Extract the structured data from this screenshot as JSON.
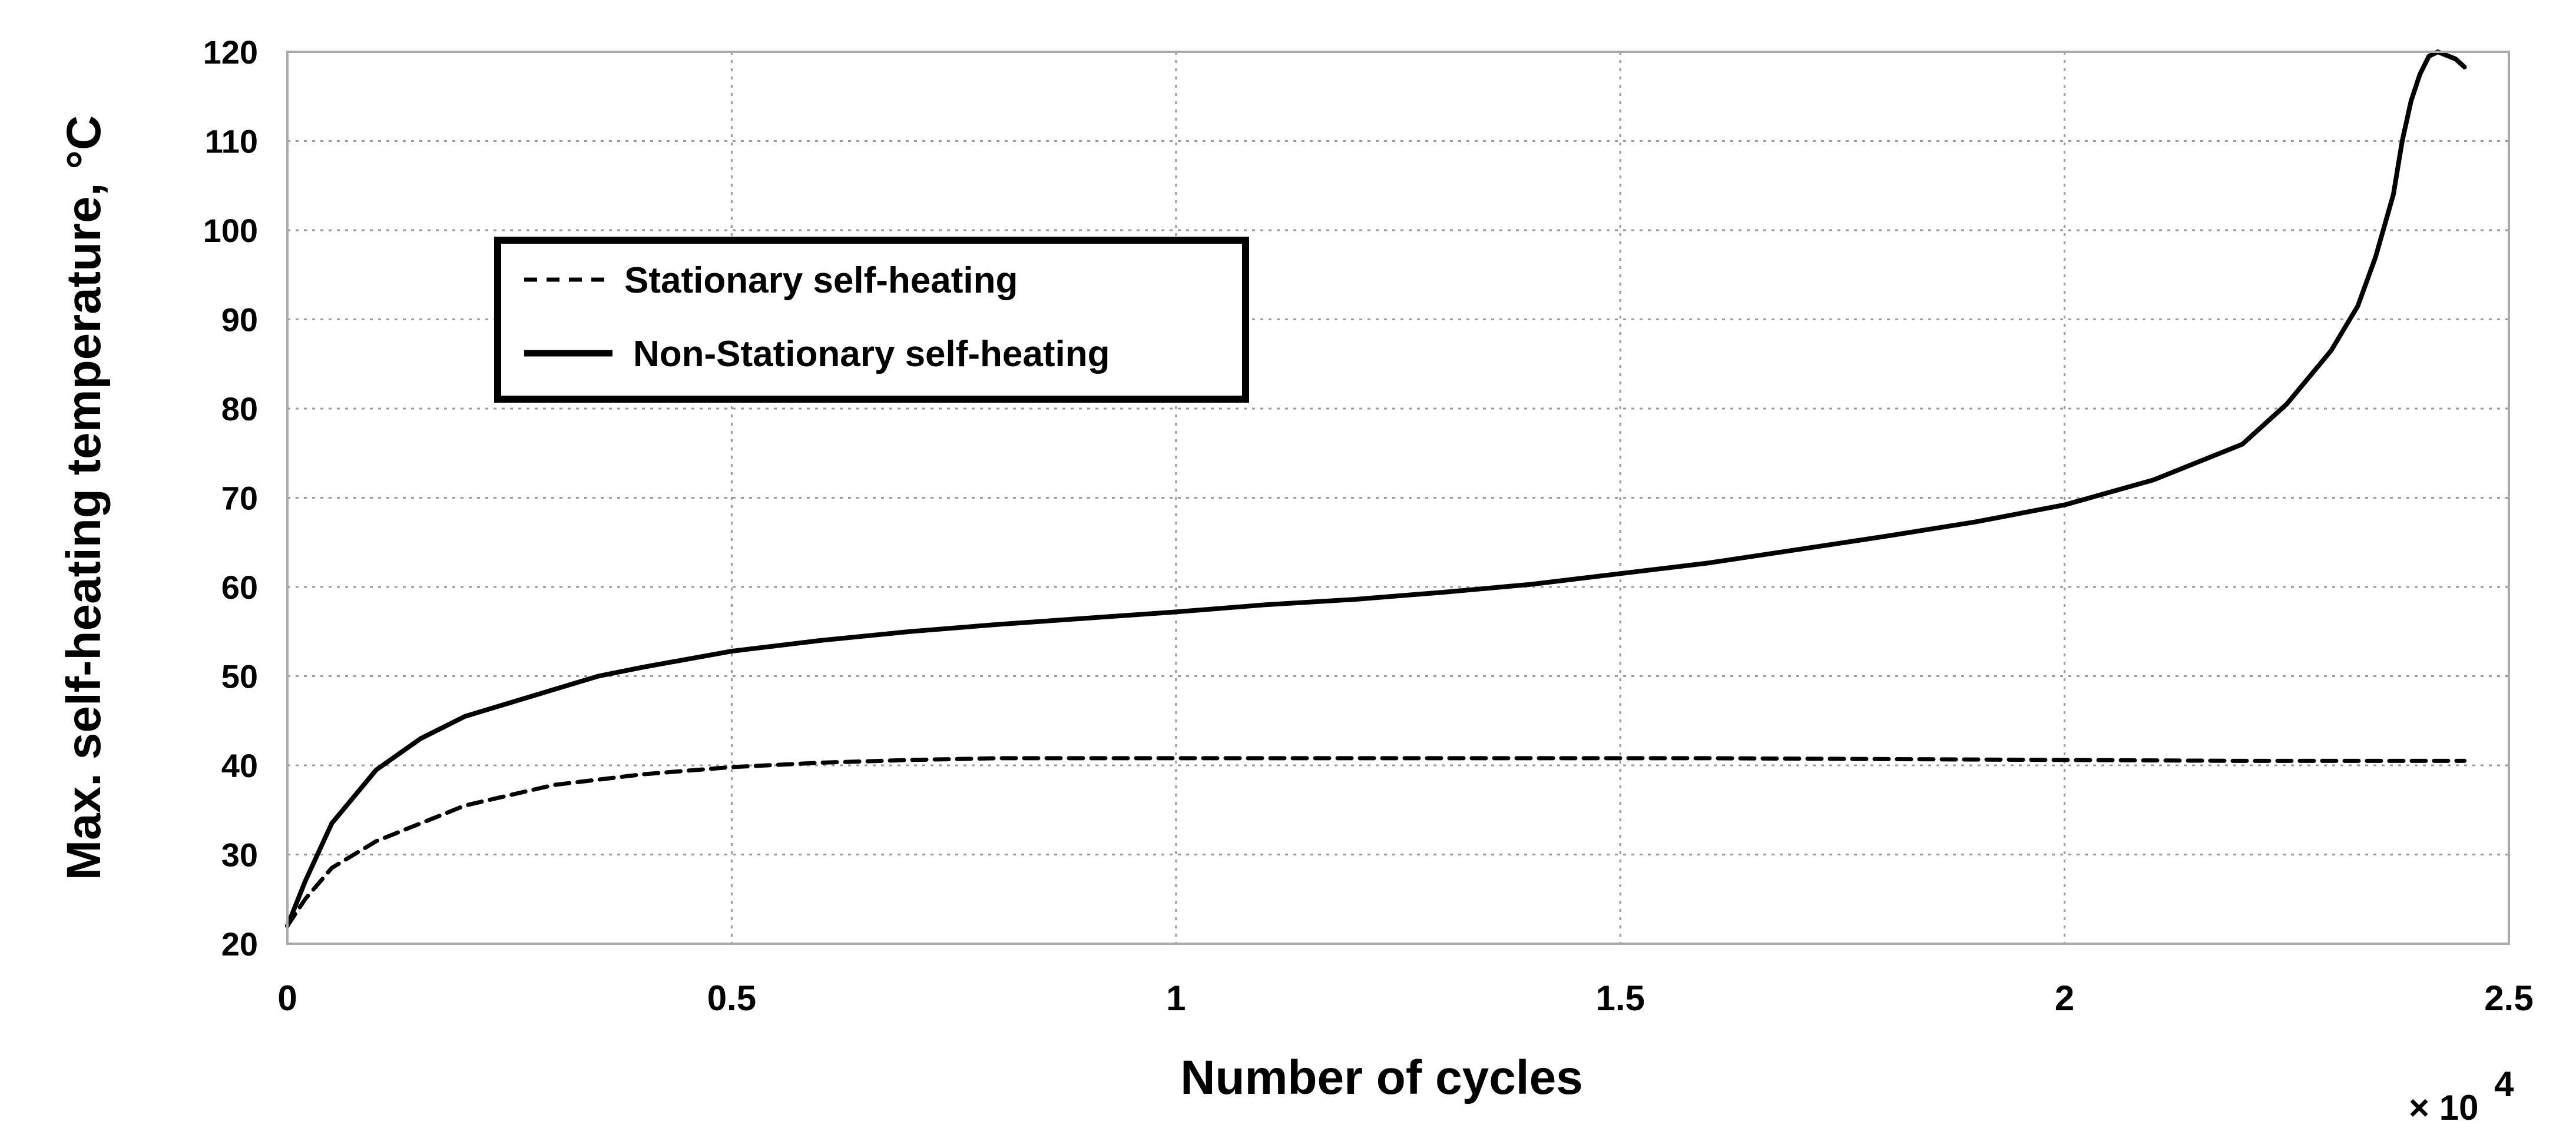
{
  "chart_data": {
    "type": "line",
    "title": "",
    "xlabel": "Number of cycles",
    "ylabel": "Max. self-heating temperature, °C",
    "x_multiplier": "× 10",
    "x_multiplier_exponent": "4",
    "xlim": [
      0,
      2.5
    ],
    "ylim": [
      20,
      120
    ],
    "x_ticks": [
      "0",
      "0.5",
      "1",
      "1.5",
      "2",
      "2.5"
    ],
    "x_tick_values": [
      0,
      0.5,
      1,
      1.5,
      2,
      2.5
    ],
    "y_ticks": [
      "20",
      "30",
      "40",
      "50",
      "60",
      "70",
      "80",
      "90",
      "100",
      "110",
      "120"
    ],
    "y_tick_values": [
      20,
      30,
      40,
      50,
      60,
      70,
      80,
      90,
      100,
      110,
      120
    ],
    "grid": true,
    "legend_position": "upper-left",
    "series": [
      {
        "name": "Stationary self-heating",
        "style": "dashed",
        "color": "#000000",
        "x": [
          0,
          0.02,
          0.05,
          0.1,
          0.15,
          0.2,
          0.3,
          0.4,
          0.5,
          0.6,
          0.7,
          0.8,
          1.0,
          1.2,
          1.4,
          1.6,
          1.8,
          2.0,
          2.2,
          2.4,
          2.45
        ],
        "y": [
          22,
          25,
          28.5,
          31.5,
          33.5,
          35.5,
          37.8,
          39,
          39.8,
          40.3,
          40.6,
          40.8,
          40.8,
          40.8,
          40.8,
          40.8,
          40.7,
          40.6,
          40.5,
          40.5,
          40.5
        ]
      },
      {
        "name": "Non-Stationary self-heating",
        "style": "solid",
        "color": "#000000",
        "x": [
          0,
          0.02,
          0.05,
          0.1,
          0.15,
          0.2,
          0.3,
          0.35,
          0.4,
          0.5,
          0.6,
          0.7,
          0.8,
          0.9,
          1.0,
          1.1,
          1.2,
          1.3,
          1.4,
          1.5,
          1.6,
          1.7,
          1.8,
          1.9,
          2.0,
          2.1,
          2.2,
          2.25,
          2.3,
          2.33,
          2.35,
          2.37,
          2.38,
          2.39,
          2.4,
          2.41,
          2.42,
          2.44,
          2.45
        ],
        "y": [
          22,
          27,
          33.5,
          39.5,
          43,
          45.5,
          48.5,
          50,
          51,
          52.8,
          54,
          55,
          55.8,
          56.5,
          57.2,
          58,
          58.6,
          59.4,
          60.3,
          61.5,
          62.7,
          64.2,
          65.7,
          67.3,
          69.2,
          72,
          76,
          80.5,
          86.5,
          91.5,
          97,
          104,
          110,
          114.5,
          117.5,
          119.5,
          120,
          119.2,
          118.3
        ]
      }
    ]
  }
}
